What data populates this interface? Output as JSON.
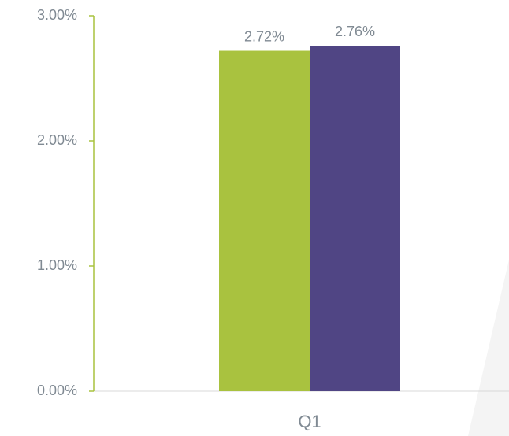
{
  "chart_data": {
    "type": "bar",
    "categories": [
      "Q1"
    ],
    "series": [
      {
        "color": "#a9c23f",
        "values": [
          2.72
        ],
        "value_labels": [
          "2.72%"
        ]
      },
      {
        "color": "#504584",
        "values": [
          2.76
        ],
        "value_labels": [
          "2.76%"
        ]
      }
    ],
    "ylim": [
      0,
      3
    ],
    "yticks": [
      {
        "value": 0,
        "label": "0.00%"
      },
      {
        "value": 1,
        "label": "1.00%"
      },
      {
        "value": 2,
        "label": "2.00%"
      },
      {
        "value": 3,
        "label": "3.00%"
      }
    ],
    "axis_color": "#a9c23f"
  }
}
